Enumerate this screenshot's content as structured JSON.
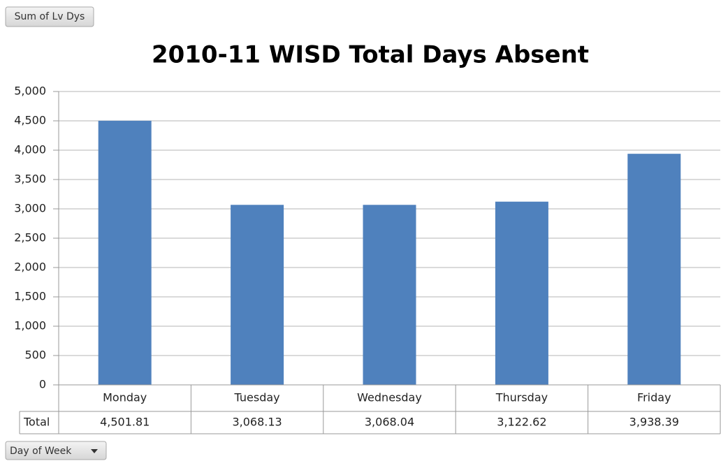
{
  "chart_data": {
    "type": "bar",
    "title": "2010-11 WISD Total Days Absent",
    "value_field": "Sum of Lv Dys",
    "category_field": "Day of Week",
    "categories": [
      "Monday",
      "Tuesday",
      "Wednesday",
      "Thursday",
      "Friday"
    ],
    "series": [
      {
        "name": "Total",
        "color": "#4f81bd",
        "values": [
          4501.81,
          3068.13,
          3068.04,
          3122.62,
          3938.39
        ],
        "value_labels": [
          "4,501.81",
          "3,068.13",
          "3,068.04",
          "3,122.62",
          "3,938.39"
        ]
      }
    ],
    "ylim": [
      0,
      5000
    ],
    "yticks": [
      0,
      500,
      {
        "value": 1000,
        "label": "1,000"
      },
      {
        "value": 1500,
        "label": "1,500"
      },
      {
        "value": 2000,
        "label": "2,000"
      },
      {
        "value": 2500,
        "label": "2,500"
      },
      {
        "value": 3000,
        "label": "3,000"
      },
      {
        "value": 3500,
        "label": "3,500"
      },
      {
        "value": 4000,
        "label": "4,000"
      },
      {
        "value": 4500,
        "label": "4,500"
      },
      {
        "value": 5000,
        "label": "5,000"
      }
    ],
    "grid": true
  }
}
